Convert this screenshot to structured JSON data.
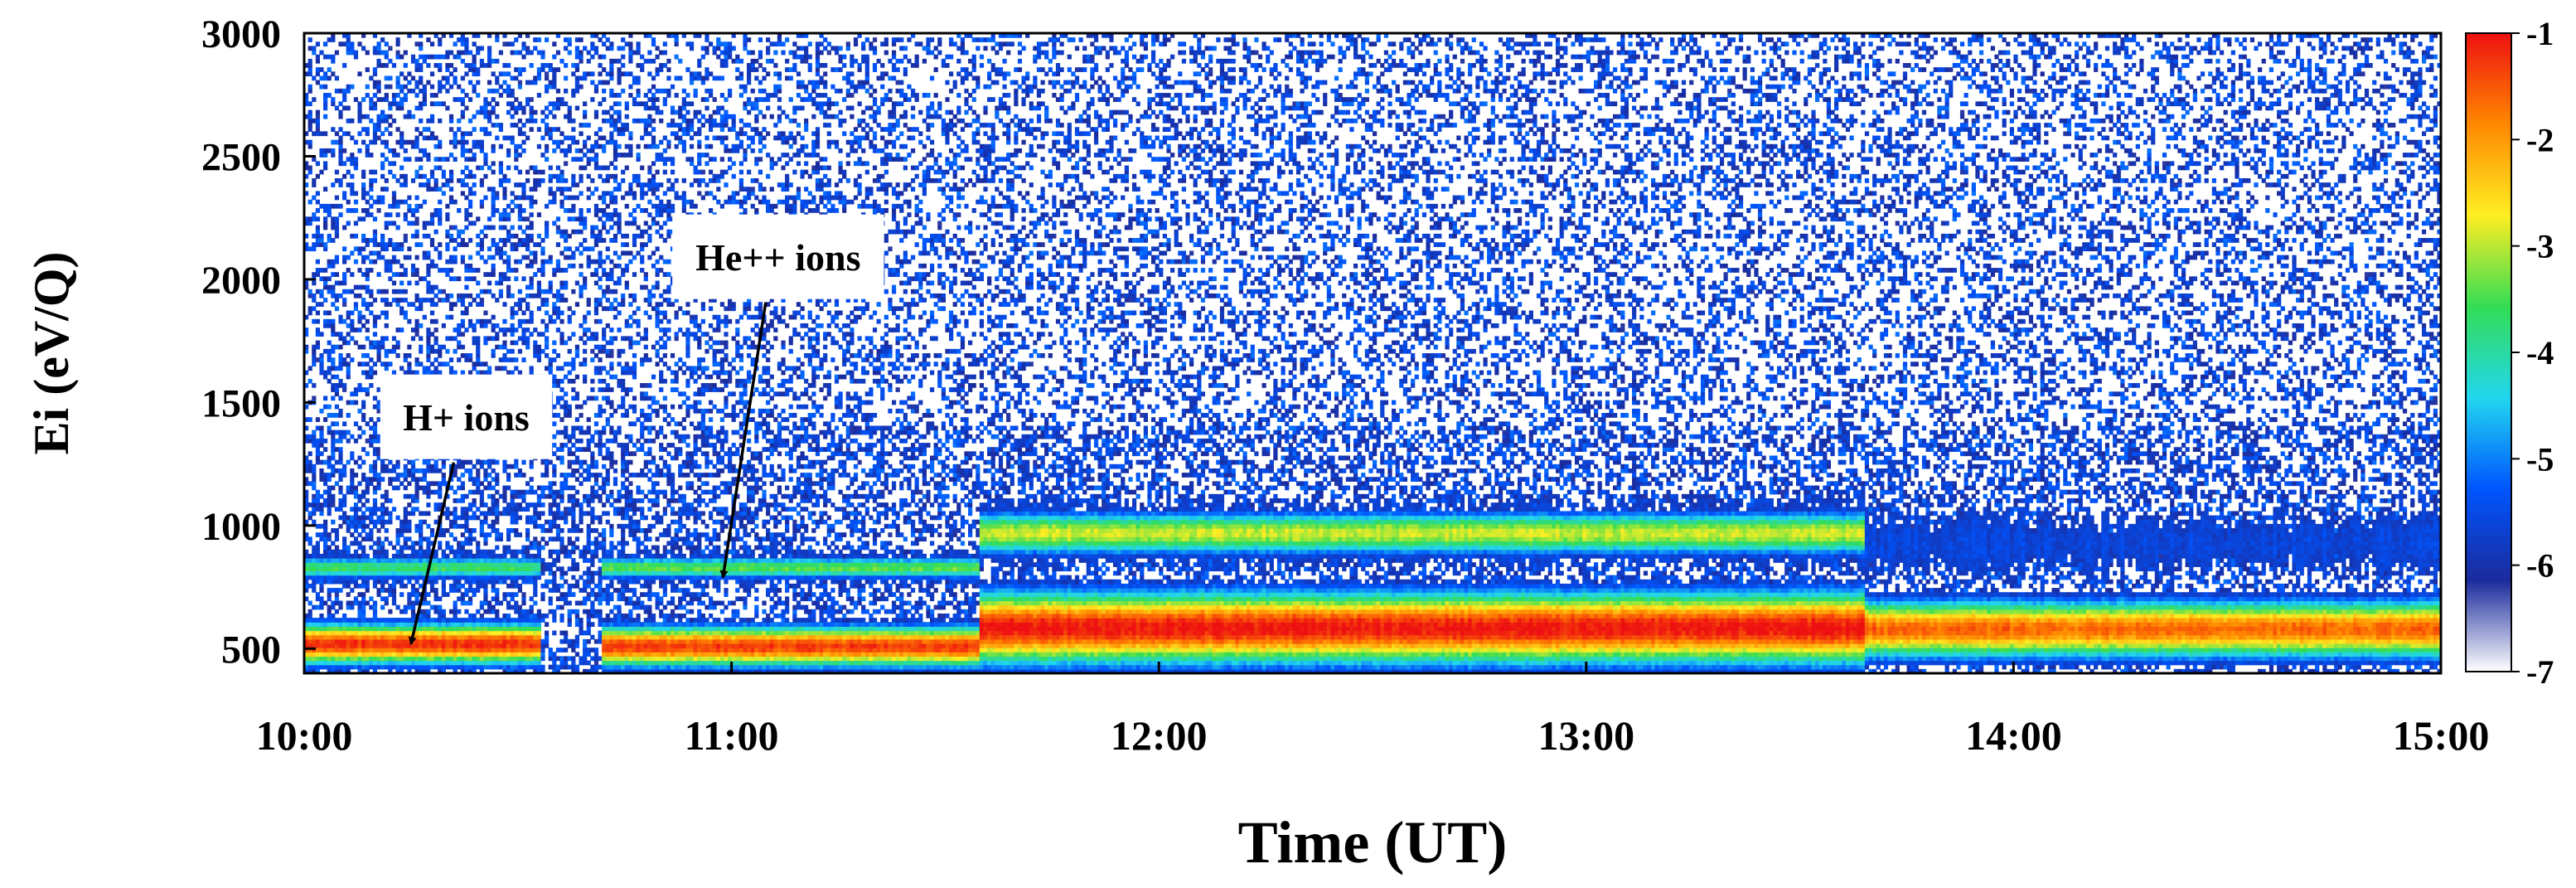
{
  "chart_data": {
    "type": "heatmap",
    "title": "",
    "xlabel": "Time (UT)",
    "ylabel": "Ei (eV/Q)",
    "x_ticks": [
      "10:00",
      "11:00",
      "12:00",
      "13:00",
      "14:00",
      "15:00"
    ],
    "x_tick_hours": [
      10,
      11,
      12,
      13,
      14,
      15
    ],
    "xlim_hours": [
      10,
      15
    ],
    "y_ticks": [
      500,
      1000,
      1500,
      2000,
      2500,
      3000
    ],
    "ylim": [
      400,
      3000
    ],
    "colorbar": {
      "ticks": [
        "-1",
        "-2",
        "-3",
        "-4",
        "-5",
        "-6",
        "-7"
      ],
      "values": [
        -1,
        -2,
        -3,
        -4,
        -5,
        -6,
        -7
      ],
      "range": [
        -7,
        -1
      ],
      "scale": "log10",
      "colors": [
        "#ffffff",
        "#1b2b9c",
        "#0055ff",
        "#22d6ee",
        "#33dd55",
        "#ffee22",
        "#ff8800",
        "#ee1111"
      ]
    },
    "grid": false,
    "legend": "none",
    "bands": [
      {
        "start": 10.0,
        "end": 10.55,
        "hplus_center": 520,
        "hplus_halfwidth": 85,
        "hplus_peak": -1.2,
        "heplus_center": 830,
        "heplus_halfwidth": 45,
        "heplus_peak": -3.6,
        "noise_top": 1100
      },
      {
        "start": 10.7,
        "end": 11.58,
        "hplus_center": 510,
        "hplus_halfwidth": 85,
        "hplus_peak": -1.3,
        "heplus_center": 830,
        "heplus_halfwidth": 45,
        "heplus_peak": -3.4,
        "noise_top": 1050
      },
      {
        "start": 11.58,
        "end": 13.65,
        "hplus_center": 585,
        "hplus_halfwidth": 150,
        "hplus_peak": -1.0,
        "heplus_center": 970,
        "heplus_halfwidth": 90,
        "heplus_peak": -2.9,
        "noise_top": 1300
      },
      {
        "start": 13.65,
        "end": 15.0,
        "hplus_center": 580,
        "hplus_halfwidth": 120,
        "hplus_peak": -1.6,
        "heplus_center": 930,
        "heplus_halfwidth": 80,
        "heplus_peak": -5.6,
        "noise_top": 1100
      }
    ],
    "annotations": [
      {
        "text": "H+ ions",
        "arrow_from": [
          10.35,
          1270
        ],
        "arrow_to": [
          10.25,
          520
        ]
      },
      {
        "text": "He++ ions",
        "arrow_from": [
          11.08,
          1920
        ],
        "arrow_to": [
          10.98,
          790
        ]
      }
    ]
  }
}
